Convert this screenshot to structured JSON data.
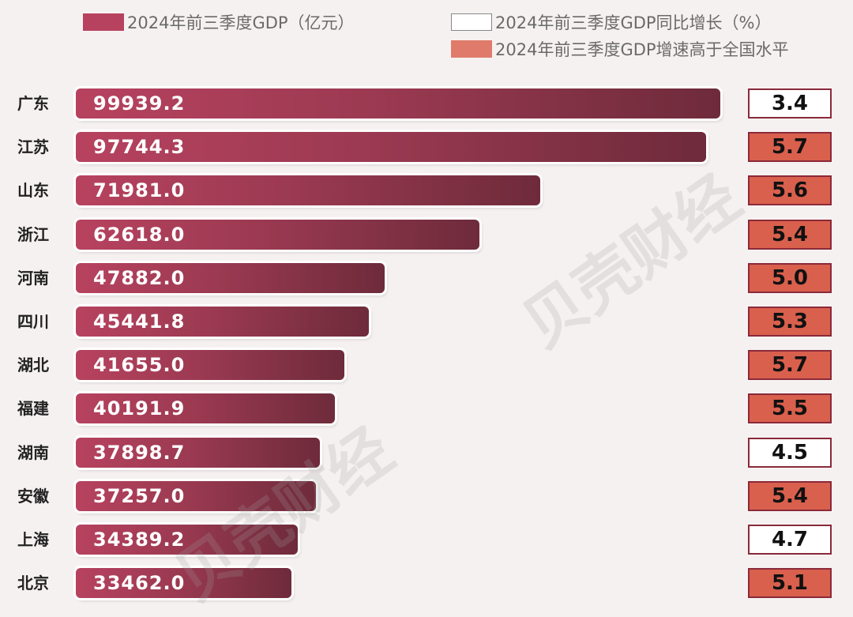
{
  "legend": {
    "gdp_label": "2024年前三季度GDP（亿元）",
    "growth_label": "2024年前三季度GDP同比增长（%）",
    "above_label": "2024年前三季度GDP增速高于全国水平"
  },
  "watermarks": [
    "贝壳财经",
    "贝壳财经"
  ],
  "colors": {
    "bar_start": "#b7425f",
    "bar_end": "#6e2b3b",
    "above_national": "#d9604d",
    "not_above": "#ffffff",
    "box_border": "#8a2a3a"
  },
  "chart_data": {
    "type": "bar",
    "orientation": "horizontal",
    "categories": [
      "广东",
      "江苏",
      "山东",
      "浙江",
      "河南",
      "四川",
      "湖北",
      "福建",
      "湖南",
      "安徽",
      "上海",
      "北京"
    ],
    "series": [
      {
        "name": "2024年前三季度GDP（亿元）",
        "values": [
          99939.2,
          97744.3,
          71981.0,
          62618.0,
          47882.0,
          45441.8,
          41655.0,
          40191.9,
          37898.7,
          37257.0,
          34389.2,
          33462.0
        ],
        "labels": [
          "99939.2",
          "97744.3",
          "71981.0",
          "62618.0",
          "47882.0",
          "45441.8",
          "41655.0",
          "40191.9",
          "37898.7",
          "37257.0",
          "34389.2",
          "33462.0"
        ]
      },
      {
        "name": "2024年前三季度GDP同比增长（%）",
        "values": [
          3.4,
          5.7,
          5.6,
          5.4,
          5.0,
          5.3,
          5.7,
          5.5,
          4.5,
          5.4,
          4.7,
          5.1
        ],
        "labels": [
          "3.4",
          "5.7",
          "5.6",
          "5.4",
          "5.0",
          "5.3",
          "5.7",
          "5.5",
          "4.5",
          "5.4",
          "4.7",
          "5.1"
        ]
      }
    ],
    "above_national": [
      false,
      true,
      true,
      true,
      true,
      true,
      true,
      true,
      false,
      true,
      false,
      true
    ],
    "xlim": [
      0,
      100000
    ],
    "grid": false,
    "legend_position": "top"
  }
}
